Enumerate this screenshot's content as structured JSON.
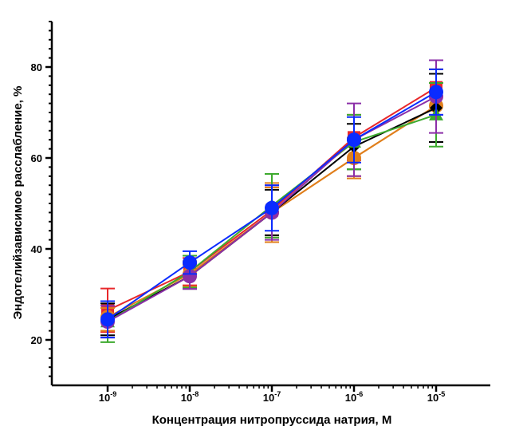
{
  "chart_data": {
    "type": "line",
    "title": "",
    "xlabel": "Концентрация нитропруссида натрия, М",
    "ylabel": "Эндотелийзависимое расслабление, %",
    "x_scale": "log10",
    "x": [
      1e-09,
      1e-08,
      1e-07,
      1e-06,
      1e-05
    ],
    "x_tick_labels": [
      {
        "base": "10",
        "exp": "-9"
      },
      {
        "base": "10",
        "exp": "-8"
      },
      {
        "base": "10",
        "exp": "-7"
      },
      {
        "base": "10",
        "exp": "-6"
      },
      {
        "base": "10",
        "exp": "-5"
      }
    ],
    "y_ticks": [
      "20",
      "40",
      "60",
      "80"
    ],
    "ylim": [
      10,
      90
    ],
    "grid": false,
    "legend": "none",
    "series": [
      {
        "color": "#E8282B",
        "marker": "square",
        "values": [
          26.5,
          35,
          48.5,
          64.5,
          75.5
        ],
        "errors": [
          4.8,
          3.0,
          5.5,
          5.0,
          6.0
        ]
      },
      {
        "color": "#E07F1C",
        "marker": "circle",
        "values": [
          25,
          34.5,
          48,
          60,
          71.5
        ],
        "errors": [
          3.0,
          2.8,
          6.5,
          4.5,
          8.0
        ]
      },
      {
        "color": "#E07F1C",
        "marker": "diamond",
        "values": [
          24.5,
          34,
          48,
          60,
          71.5
        ],
        "errors": [
          2.5,
          2.5,
          5.5,
          4.0,
          8.0
        ]
      },
      {
        "color": "#000000",
        "marker": "diamond",
        "values": [
          24.5,
          34,
          48,
          62.5,
          71
        ],
        "errors": [
          3.5,
          2.8,
          5.0,
          5.0,
          7.5
        ]
      },
      {
        "color": "#3DAA2E",
        "marker": "triangle",
        "values": [
          24,
          35,
          49.5,
          63.5,
          69.5
        ],
        "errors": [
          4.5,
          3.5,
          7.0,
          6.0,
          7.0
        ]
      },
      {
        "color": "#8B2FA8",
        "marker": "circle",
        "values": [
          24,
          34,
          48,
          64,
          73.5
        ],
        "errors": [
          3.5,
          2.8,
          6.0,
          8.0,
          8.0
        ]
      },
      {
        "color": "#0A2BFF",
        "marker": "circle",
        "values": [
          24.5,
          37,
          49,
          64,
          74.5
        ],
        "errors": [
          4.0,
          2.5,
          5.0,
          5.0,
          5.0
        ]
      }
    ]
  }
}
